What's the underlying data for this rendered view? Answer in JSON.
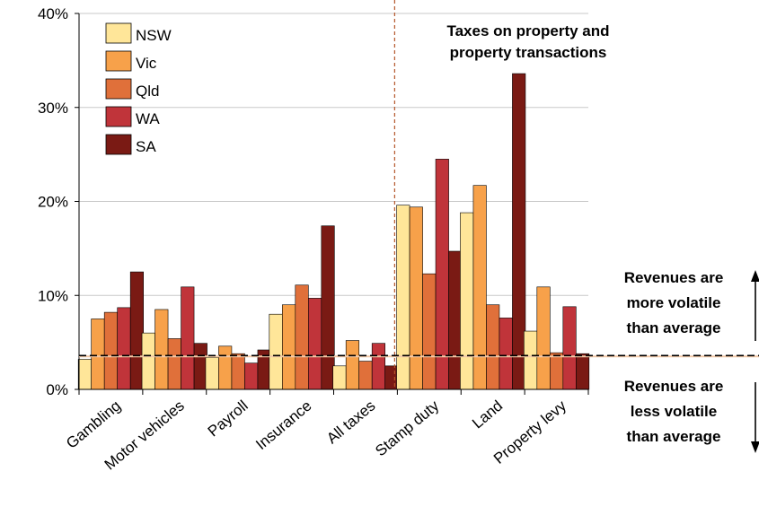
{
  "chart_data": {
    "type": "bar",
    "categories": [
      "Gambling",
      "Motor vehicles",
      "Payroll",
      "Insurance",
      "All taxes",
      "Stamp duty",
      "Land",
      "Property levy"
    ],
    "series": [
      {
        "name": "NSW",
        "color": "#FFE699",
        "values": [
          3.2,
          6.0,
          3.4,
          8.0,
          2.5,
          19.6,
          18.8,
          6.2
        ]
      },
      {
        "name": "Vic",
        "color": "#F7A14A",
        "values": [
          7.5,
          8.5,
          4.6,
          9.0,
          5.2,
          19.4,
          21.7,
          10.9
        ]
      },
      {
        "name": "Qld",
        "color": "#E0703A",
        "values": [
          8.2,
          5.4,
          3.8,
          11.1,
          3.0,
          12.3,
          9.0,
          3.9
        ]
      },
      {
        "name": "WA",
        "color": "#C0343A",
        "values": [
          8.7,
          10.9,
          2.8,
          9.7,
          4.9,
          24.5,
          7.6,
          8.8
        ]
      },
      {
        "name": "SA",
        "color": "#7A1A14",
        "values": [
          12.5,
          4.9,
          4.2,
          17.4,
          2.5,
          14.7,
          33.6,
          3.8
        ]
      }
    ],
    "yticks": [
      "0%",
      "10%",
      "20%",
      "30%",
      "40%"
    ],
    "ylim": [
      0,
      40
    ],
    "grid": true,
    "legend_position": "top-left",
    "average_line": 3.6,
    "annotations": {
      "property_title": [
        "Taxes on property and",
        "property transactions"
      ],
      "more_volatile": [
        "Revenues are",
        "more volatile",
        "than average"
      ],
      "less_volatile": [
        "Revenues are",
        "less volatile",
        "than average"
      ]
    }
  }
}
